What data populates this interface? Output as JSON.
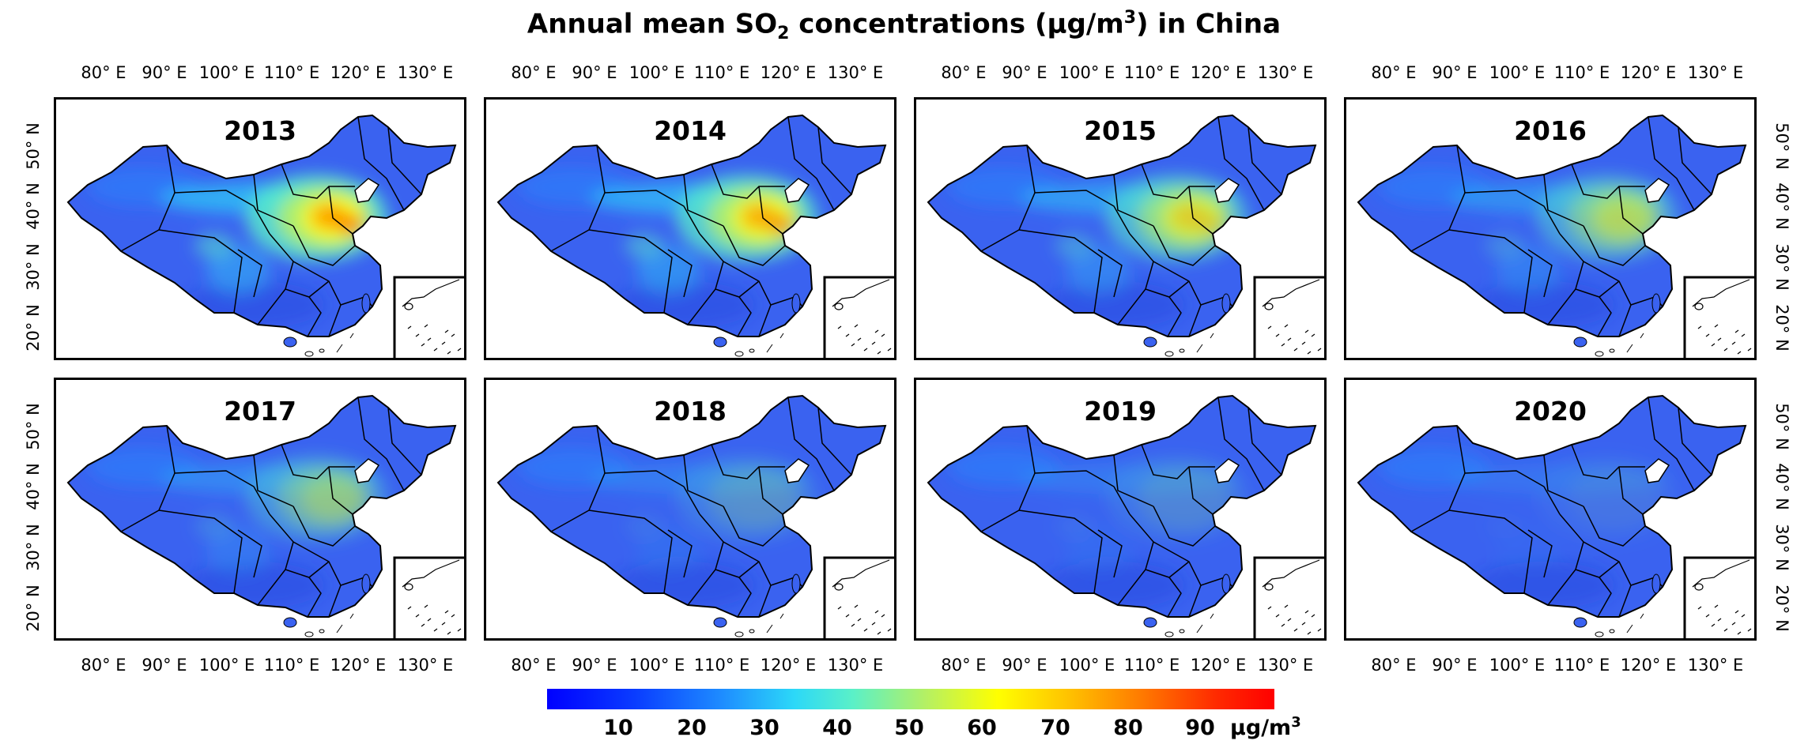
{
  "title": {
    "prefix": "Annual mean SO",
    "sub": "2",
    "middle": " concentrations (μg/m",
    "sup": "3",
    "suffix": ") in China"
  },
  "longitude_labels": [
    "80° E",
    "90° E",
    "100° E",
    "110° E",
    "120° E",
    "130° E"
  ],
  "latitude_labels": [
    "50° N",
    "40° N",
    "30° N",
    "20° N"
  ],
  "panels": [
    {
      "year": "2013",
      "intensity": 1.0
    },
    {
      "year": "2014",
      "intensity": 0.92
    },
    {
      "year": "2015",
      "intensity": 0.7
    },
    {
      "year": "2016",
      "intensity": 0.52
    },
    {
      "year": "2017",
      "intensity": 0.4
    },
    {
      "year": "2018",
      "intensity": 0.2
    },
    {
      "year": "2019",
      "intensity": 0.15
    },
    {
      "year": "2020",
      "intensity": 0.08
    }
  ],
  "colorbar": {
    "ticks": [
      "10",
      "20",
      "30",
      "40",
      "50",
      "60",
      "70",
      "80",
      "90"
    ],
    "unit_base": "μg/m",
    "unit_sup": "3",
    "colors": [
      "#0000ff",
      "#1e8cff",
      "#2cd8f8",
      "#b4f064",
      "#ffff00",
      "#ff7800",
      "#ff0000"
    ]
  },
  "colors": {
    "land_base": "#3a62f0",
    "land_dark": "#2338d8",
    "border": "#000000"
  }
}
